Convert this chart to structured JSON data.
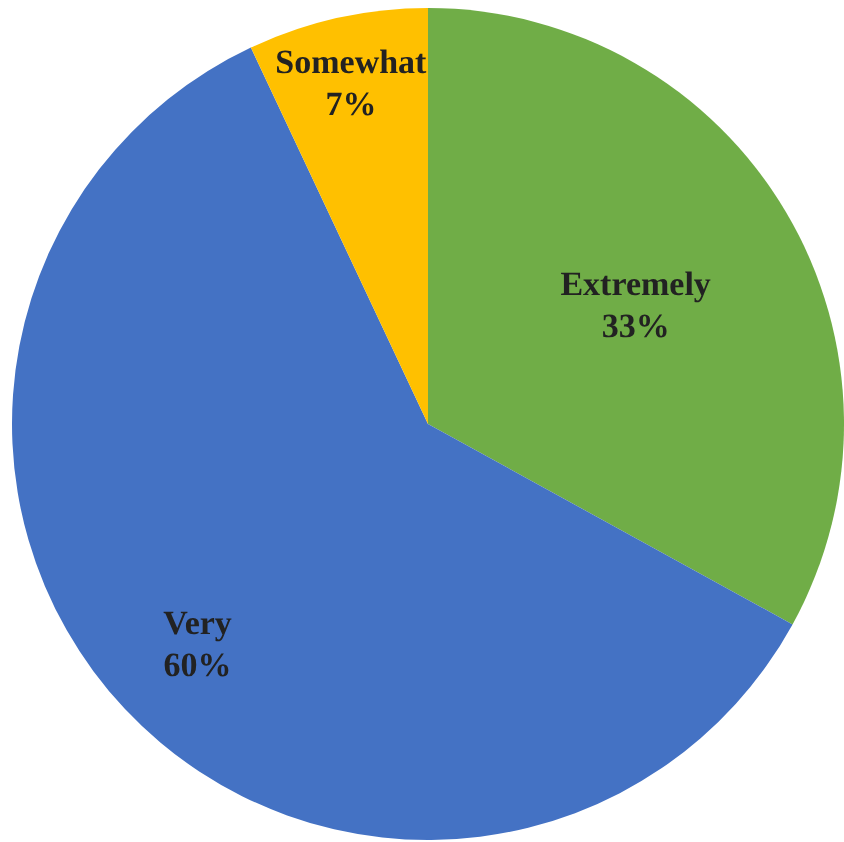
{
  "chart_data": {
    "type": "pie",
    "categories": [
      "Extremely",
      "Very",
      "Somewhat"
    ],
    "values": [
      33,
      60,
      7
    ],
    "colors": [
      "#70ad47",
      "#4472c4",
      "#ffc000"
    ],
    "value_labels": [
      "33%",
      "60%",
      "7%"
    ]
  }
}
